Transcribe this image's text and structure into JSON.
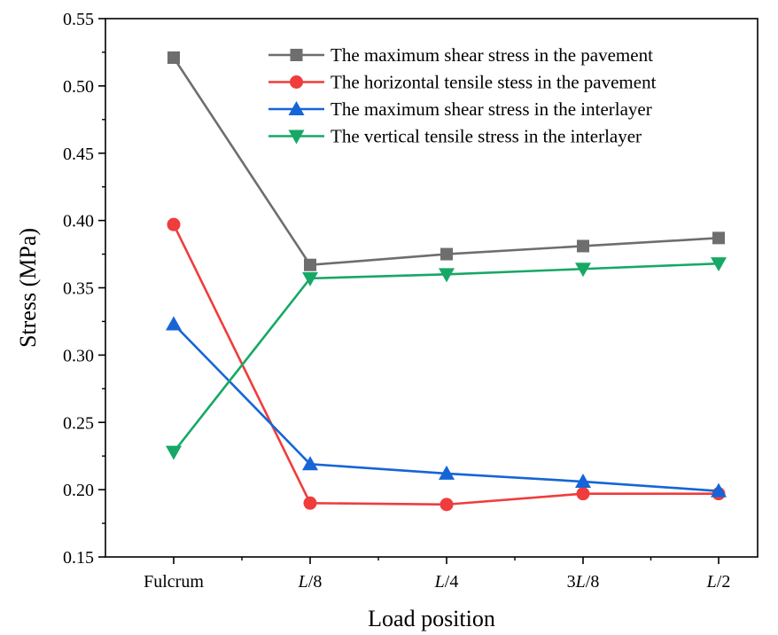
{
  "chart_data": {
    "type": "line",
    "title": "",
    "xlabel": "Load position",
    "ylabel": "Stress (MPa)",
    "categories": [
      {
        "id": "fulcrum",
        "parts": [
          {
            "t": "Fulcrum",
            "i": false
          }
        ]
      },
      {
        "id": "l8",
        "parts": [
          {
            "t": "L",
            "i": true
          },
          {
            "t": "/8",
            "i": false
          }
        ]
      },
      {
        "id": "l4",
        "parts": [
          {
            "t": "L",
            "i": true
          },
          {
            "t": "/4",
            "i": false
          }
        ]
      },
      {
        "id": "3l8",
        "parts": [
          {
            "t": "3",
            "i": false
          },
          {
            "t": "L",
            "i": true
          },
          {
            "t": "/8",
            "i": false
          }
        ]
      },
      {
        "id": "l2",
        "parts": [
          {
            "t": "L",
            "i": true
          },
          {
            "t": "/2",
            "i": false
          }
        ]
      }
    ],
    "ylim": [
      0.15,
      0.55
    ],
    "yticks": [
      "0.15",
      "0.20",
      "0.25",
      "0.30",
      "0.35",
      "0.40",
      "0.45",
      "0.50",
      "0.55"
    ],
    "grid": false,
    "legend_position": "top-right",
    "series": [
      {
        "name": "The maximum shear stress in the pavement",
        "color": "#6e6e6e",
        "marker": "square",
        "values": [
          0.521,
          0.367,
          0.375,
          0.381,
          0.387
        ]
      },
      {
        "name": "The horizontal tensile stess in the pavement",
        "color": "#f03c3c",
        "marker": "circle",
        "values": [
          0.397,
          0.19,
          0.189,
          0.197,
          0.197
        ]
      },
      {
        "name": "The maximum shear stress in the interlayer",
        "color": "#1565d8",
        "marker": "triangle-up",
        "values": [
          0.323,
          0.219,
          0.212,
          0.206,
          0.199
        ]
      },
      {
        "name": "The vertical tensile stress in the interlayer",
        "color": "#17a866",
        "marker": "triangle-down",
        "values": [
          0.228,
          0.357,
          0.36,
          0.364,
          0.368
        ]
      }
    ]
  }
}
